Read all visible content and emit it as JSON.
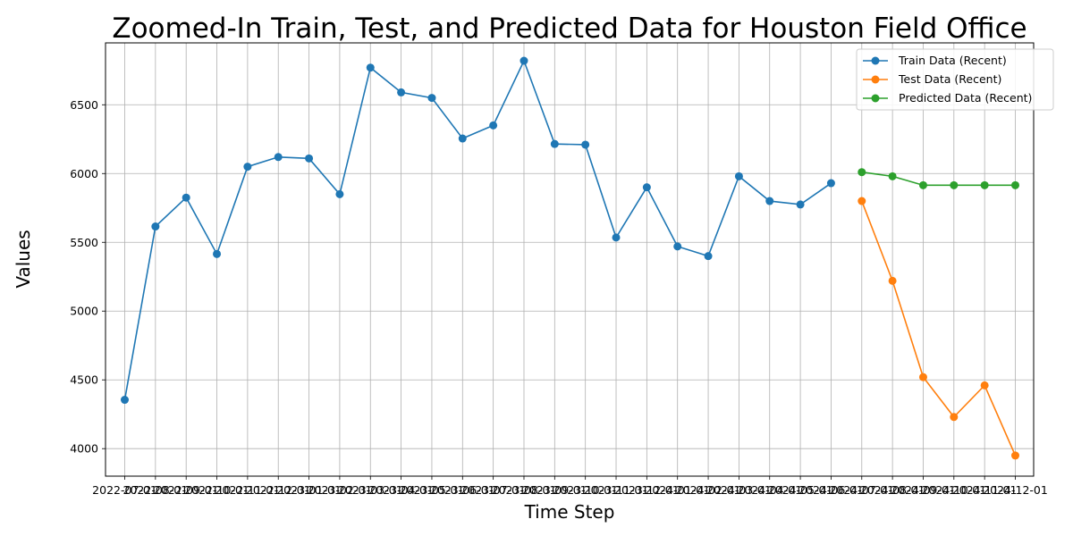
{
  "chart_data": {
    "type": "line",
    "title": "Zoomed-In Train, Test, and Predicted Data for Houston Field Office",
    "xlabel": "Time Step",
    "ylabel": "Values",
    "grid": true,
    "legend_position": "top-right",
    "ylim": [
      3800,
      6950
    ],
    "yticks": [
      4000,
      4500,
      5000,
      5500,
      6000,
      6500
    ],
    "x_ticks": [
      "2022-07-01",
      "2022-08-01",
      "2022-09-01",
      "2022-10-01",
      "2022-11-01",
      "2022-12-01",
      "2023-01-01",
      "2023-02-01",
      "2023-03-01",
      "2023-04-01",
      "2023-05-01",
      "2023-06-01",
      "2023-07-01",
      "2023-08-01",
      "2023-09-01",
      "2023-10-01",
      "2023-11-01",
      "2023-12-01",
      "2024-01-01",
      "2024-02-01",
      "2024-03-01",
      "2024-04-01",
      "2024-05-01",
      "2024-06-01",
      "2024-07-01",
      "2024-08-01",
      "2024-09-01",
      "2024-10-01",
      "2024-11-01",
      "2024-12-01"
    ],
    "series": [
      {
        "name": "Train Data (Recent)",
        "color": "#1f77b4",
        "x": [
          "2022-07-01",
          "2022-08-01",
          "2022-09-01",
          "2022-10-01",
          "2022-11-01",
          "2022-12-01",
          "2023-01-01",
          "2023-02-01",
          "2023-03-01",
          "2023-04-01",
          "2023-05-01",
          "2023-06-01",
          "2023-07-01",
          "2023-08-01",
          "2023-09-01",
          "2023-10-01",
          "2023-11-01",
          "2023-12-01",
          "2024-01-01",
          "2024-02-01",
          "2024-03-01",
          "2024-04-01",
          "2024-05-01",
          "2024-06-01"
        ],
        "values": [
          4355,
          5615,
          5825,
          5415,
          6050,
          6120,
          6110,
          5850,
          6770,
          6590,
          6550,
          6255,
          6350,
          6820,
          6215,
          6210,
          5535,
          5900,
          5470,
          5400,
          5980,
          5800,
          5775,
          5930
        ]
      },
      {
        "name": "Test Data (Recent)",
        "color": "#ff7f0e",
        "x": [
          "2024-07-01",
          "2024-08-01",
          "2024-09-01",
          "2024-10-01",
          "2024-11-01",
          "2024-12-01"
        ],
        "values": [
          5800,
          5220,
          4520,
          4230,
          4460,
          3950
        ]
      },
      {
        "name": "Predicted Data (Recent)",
        "color": "#2ca02c",
        "x": [
          "2024-07-01",
          "2024-08-01",
          "2024-09-01",
          "2024-10-01",
          "2024-11-01",
          "2024-12-01"
        ],
        "values": [
          6010,
          5980,
          5915,
          5915,
          5915,
          5915
        ]
      }
    ]
  }
}
